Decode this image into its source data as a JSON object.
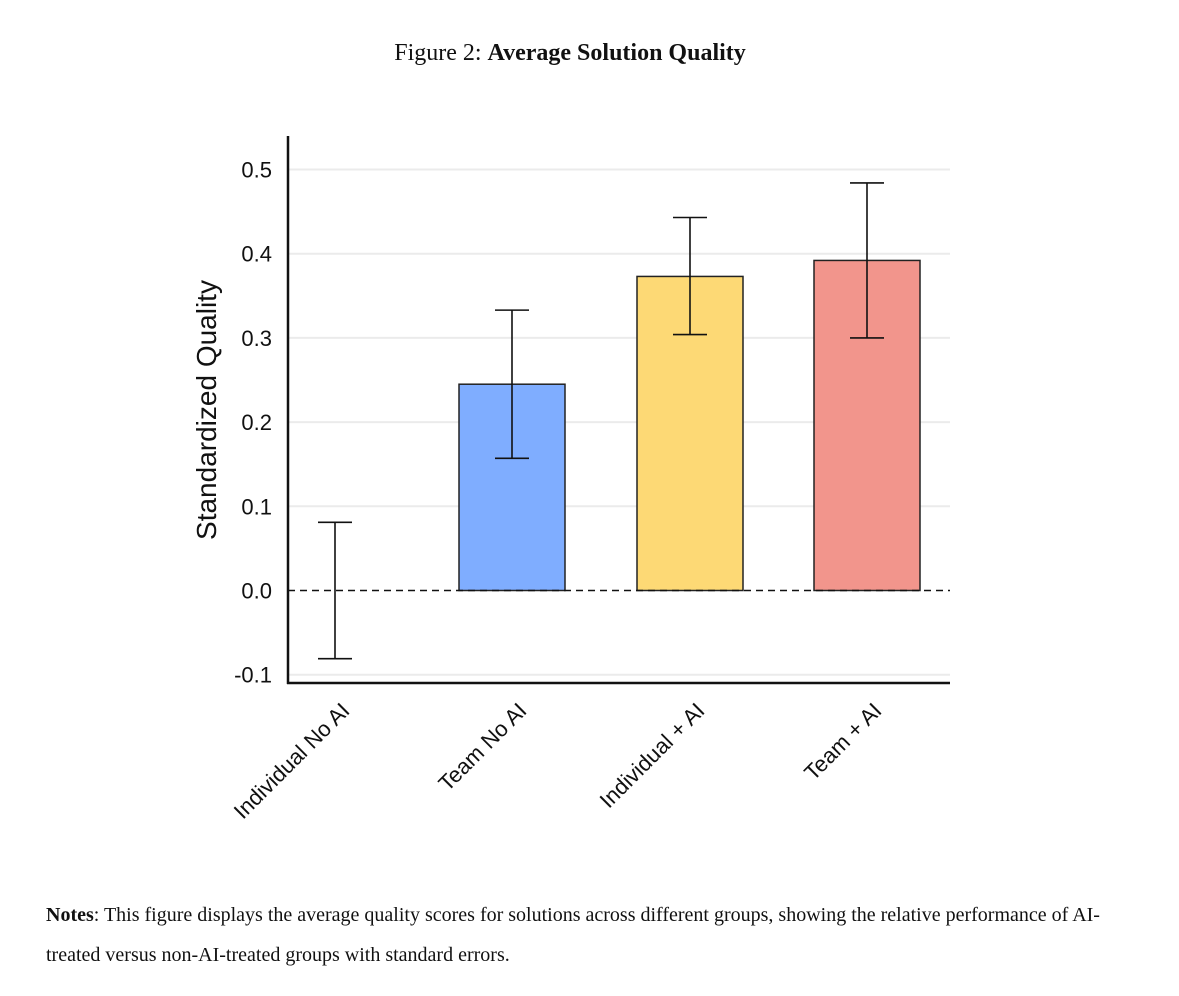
{
  "figure": {
    "number_label": "Figure 2:",
    "title": "Average Solution Quality"
  },
  "notes": {
    "label": "Notes",
    "text": ": This figure displays the average quality scores for solutions across different groups, showing the relative performance of AI-treated versus non-AI-treated groups with standard errors."
  },
  "chart_data": {
    "type": "bar",
    "title": "Average Solution Quality",
    "ylabel": "Standardized Quality",
    "xlabel": "",
    "categories": [
      "Individual No AI",
      "Team No AI",
      "Individual + AI",
      "Team + AI"
    ],
    "values": [
      0.0,
      0.245,
      0.373,
      0.392
    ],
    "error_low": [
      -0.081,
      0.157,
      0.304,
      0.3
    ],
    "error_high": [
      0.081,
      0.333,
      0.443,
      0.484
    ],
    "colors": [
      "#ffffff",
      "#7fadff",
      "#fdd975",
      "#f2958c"
    ],
    "ylim": [
      -0.11,
      0.54
    ],
    "yticks": [
      -0.1,
      0.0,
      0.1,
      0.2,
      0.3,
      0.4,
      0.5
    ],
    "ytick_labels": [
      "-0.1",
      "0.0",
      "0.1",
      "0.2",
      "0.3",
      "0.4",
      "0.5"
    ],
    "grid": true,
    "reference_line": 0.0,
    "error_bars": "standard errors"
  }
}
